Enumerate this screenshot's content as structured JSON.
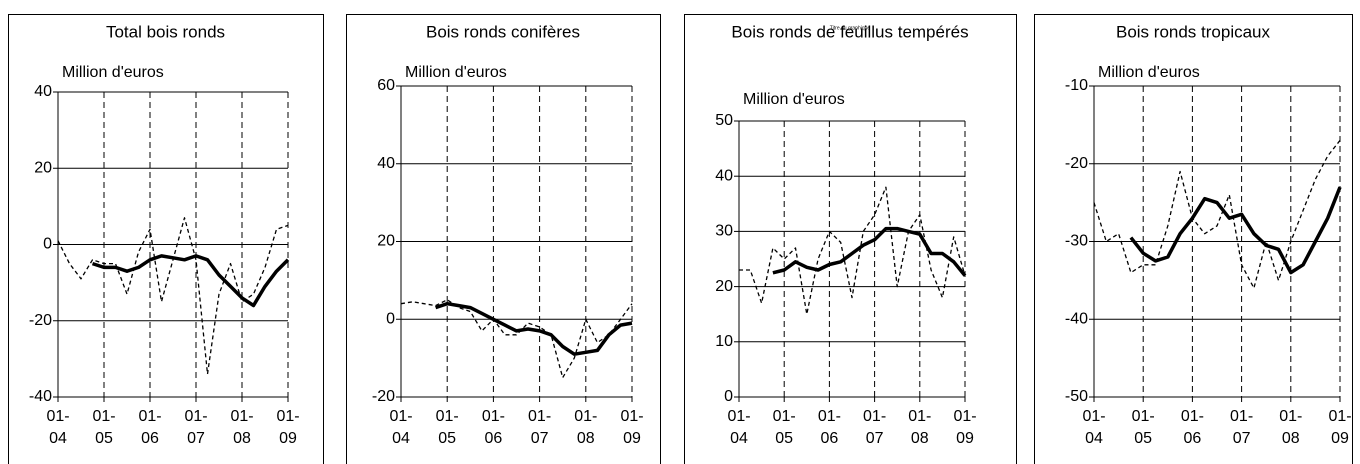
{
  "chart_data": [
    {
      "type": "line",
      "title": "Total bois ronds",
      "y_label": "Million d'euros",
      "x": [
        2004,
        2004.25,
        2004.5,
        2004.75,
        2005,
        2005.25,
        2005.5,
        2005.75,
        2006,
        2006.25,
        2006.5,
        2006.75,
        2007,
        2007.25,
        2007.5,
        2007.75,
        2008,
        2008.25,
        2008.5,
        2008.75,
        2009
      ],
      "xlim": [
        2004,
        2009
      ],
      "xticks": [
        {
          "value": 2004,
          "label": "01-04"
        },
        {
          "value": 2005,
          "label": "01-05"
        },
        {
          "value": 2006,
          "label": "01-06"
        },
        {
          "value": 2007,
          "label": "01-07"
        },
        {
          "value": 2008,
          "label": "01-08"
        },
        {
          "value": 2009,
          "label": "01-09"
        }
      ],
      "ylim": [
        -40,
        40
      ],
      "yticks": [
        -40,
        -20,
        0,
        20,
        40
      ],
      "grid": true,
      "series": [
        {
          "color": "#000000",
          "style": "dashed",
          "values": [
            1,
            -5,
            -9,
            -4,
            -5,
            -5,
            -13,
            -2,
            4,
            -15,
            -4,
            7,
            -4,
            -34,
            -13,
            -5,
            -15,
            -13,
            -6,
            4,
            5
          ]
        },
        {
          "color": "#000000",
          "style": "solid",
          "values": [
            null,
            null,
            null,
            -5,
            -6,
            -6,
            -7,
            -6,
            -4,
            -3,
            -3.5,
            -4,
            -3,
            -4,
            -8,
            -11,
            -14,
            -16,
            -11,
            -7,
            -4
          ]
        }
      ]
    },
    {
      "type": "line",
      "title": "Bois ronds conifères",
      "y_label": "Million d'euros",
      "x": [
        2004,
        2004.25,
        2004.5,
        2004.75,
        2005,
        2005.25,
        2005.5,
        2005.75,
        2006,
        2006.25,
        2006.5,
        2006.75,
        2007,
        2007.25,
        2007.5,
        2007.75,
        2008,
        2008.25,
        2008.5,
        2008.75,
        2009
      ],
      "xlim": [
        2004,
        2009
      ],
      "xticks": [
        {
          "value": 2004,
          "label": "01-04"
        },
        {
          "value": 2005,
          "label": "01-05"
        },
        {
          "value": 2006,
          "label": "01-06"
        },
        {
          "value": 2007,
          "label": "01-07"
        },
        {
          "value": 2008,
          "label": "01-08"
        },
        {
          "value": 2009,
          "label": "01-09"
        }
      ],
      "ylim": [
        -20,
        60
      ],
      "yticks": [
        -20,
        0,
        20,
        40,
        60
      ],
      "grid": true,
      "series": [
        {
          "color": "#000000",
          "style": "dashed",
          "values": [
            4,
            4.5,
            4,
            3.5,
            5,
            3,
            2,
            -3,
            0,
            -4,
            -4,
            -1,
            -2,
            -4,
            -15,
            -10,
            0,
            -6,
            -4,
            0,
            4
          ]
        },
        {
          "color": "#000000",
          "style": "solid",
          "values": [
            null,
            null,
            null,
            3,
            4,
            3.5,
            3,
            1.5,
            0,
            -1.5,
            -3,
            -2.5,
            -3,
            -4,
            -7,
            -9,
            -8.5,
            -8,
            -4,
            -1.5,
            -1
          ]
        }
      ]
    },
    {
      "type": "line",
      "title": "Bois ronds de feuillus tempérés",
      "y_label": "Million d'euros",
      "annotation": "Titre du graphique",
      "x": [
        2004,
        2004.25,
        2004.5,
        2004.75,
        2005,
        2005.25,
        2005.5,
        2005.75,
        2006,
        2006.25,
        2006.5,
        2006.75,
        2007,
        2007.25,
        2007.5,
        2007.75,
        2008,
        2008.25,
        2008.5,
        2008.75,
        2009
      ],
      "xlim": [
        2004,
        2009
      ],
      "xticks": [
        {
          "value": 2004,
          "label": "01-04"
        },
        {
          "value": 2005,
          "label": "01-05"
        },
        {
          "value": 2006,
          "label": "01-06"
        },
        {
          "value": 2007,
          "label": "01-07"
        },
        {
          "value": 2008,
          "label": "01-08"
        },
        {
          "value": 2009,
          "label": "01-09"
        }
      ],
      "ylim": [
        0,
        50
      ],
      "yticks": [
        0,
        10,
        20,
        30,
        40,
        50
      ],
      "grid": true,
      "series": [
        {
          "color": "#000000",
          "style": "dashed",
          "values": [
            23,
            23,
            17,
            27,
            25,
            27,
            15,
            25,
            30,
            28,
            18,
            30,
            33,
            38,
            20,
            30,
            33,
            23,
            18,
            29,
            22
          ]
        },
        {
          "color": "#000000",
          "style": "solid",
          "values": [
            null,
            null,
            null,
            22.5,
            23,
            24.5,
            23.5,
            23,
            24,
            24.5,
            26,
            27.5,
            28.5,
            30.5,
            30.5,
            30,
            29.5,
            26,
            26,
            24.5,
            22
          ]
        }
      ]
    },
    {
      "type": "line",
      "title": "Bois ronds tropicaux",
      "y_label": "Million d'euros",
      "x": [
        2004,
        2004.25,
        2004.5,
        2004.75,
        2005,
        2005.25,
        2005.5,
        2005.75,
        2006,
        2006.25,
        2006.5,
        2006.75,
        2007,
        2007.25,
        2007.5,
        2007.75,
        2008,
        2008.25,
        2008.5,
        2008.75,
        2009
      ],
      "xlim": [
        2004,
        2009
      ],
      "xticks": [
        {
          "value": 2004,
          "label": "01-04"
        },
        {
          "value": 2005,
          "label": "01-05"
        },
        {
          "value": 2006,
          "label": "01-06"
        },
        {
          "value": 2007,
          "label": "01-07"
        },
        {
          "value": 2008,
          "label": "01-08"
        },
        {
          "value": 2009,
          "label": "01-09"
        }
      ],
      "ylim": [
        -50,
        -10
      ],
      "yticks": [
        -50,
        -40,
        -30,
        -20,
        -10
      ],
      "grid": true,
      "series": [
        {
          "color": "#000000",
          "style": "dashed",
          "values": [
            -25,
            -30,
            -29,
            -34,
            -33,
            -33,
            -28,
            -21,
            -27,
            -29,
            -28,
            -24,
            -33,
            -36,
            -30,
            -35,
            -30,
            -26,
            -22,
            -19,
            -17
          ]
        },
        {
          "color": "#000000",
          "style": "solid",
          "values": [
            null,
            null,
            null,
            -29.5,
            -31.5,
            -32.5,
            -32,
            -29,
            -27,
            -24.5,
            -25,
            -27,
            -26.5,
            -29,
            -30.5,
            -31,
            -34,
            -33,
            -30,
            -27,
            -23
          ]
        }
      ]
    }
  ]
}
